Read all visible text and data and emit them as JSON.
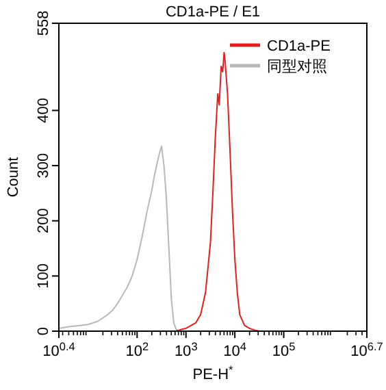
{
  "chart_data": {
    "type": "line",
    "title": "CD1a-PE / E1",
    "xlabel": "PE-H$^{*}$",
    "ylabel": "Count",
    "log": "x",
    "grid": false,
    "legend": "top right",
    "marker": "none",
    "line_style": "solid",
    "xlim": [
      2.51,
      5011872
    ],
    "xticks": [
      {
        "value": 2.51,
        "label": "10$^{0.4}$"
      },
      {
        "value": 100,
        "label": "10$^{2}$"
      },
      {
        "value": 1000,
        "label": "10$^{3}$"
      },
      {
        "value": 10000,
        "label": "10$^{4}$"
      },
      {
        "value": 100000,
        "label": "10$^{5}$"
      },
      {
        "value": 5011872,
        "label": "10$^{6.7}$"
      }
    ],
    "ylim": [
      0,
      558
    ],
    "yticks": [
      0,
      100,
      200,
      300,
      400,
      558
    ],
    "series": [
      {
        "name": "CD1a-PE",
        "color": "#e02020",
        "x": [
          631,
          794,
          1000,
          1259,
          1585,
          1995,
          2512,
          3162,
          3548,
          3981,
          4467,
          4786,
          5248,
          5623,
          6026,
          6310,
          7079,
          7943,
          8913,
          10000,
          11220,
          12589,
          15849,
          19953,
          25119,
          31623
        ],
        "values": [
          0,
          3,
          5,
          10,
          15,
          30,
          70,
          160,
          250,
          350,
          430,
          410,
          480,
          470,
          505,
          490,
          430,
          330,
          220,
          130,
          70,
          30,
          10,
          5,
          2,
          0
        ]
      },
      {
        "name": "同型对照",
        "color": "#b8b8b8",
        "x": [
          2.51,
          3.98,
          6.31,
          10,
          15.8,
          25.1,
          31.6,
          39.8,
          50.1,
          63.1,
          79.4,
          100,
          126,
          158,
          200,
          224,
          251,
          282,
          316,
          355,
          398,
          447,
          501,
          562,
          631,
          794
        ],
        "values": [
          5,
          8,
          10,
          12,
          18,
          30,
          38,
          50,
          65,
          80,
          100,
          130,
          170,
          215,
          255,
          280,
          300,
          320,
          335,
          300,
          240,
          150,
          60,
          15,
          3,
          0
        ]
      }
    ]
  }
}
